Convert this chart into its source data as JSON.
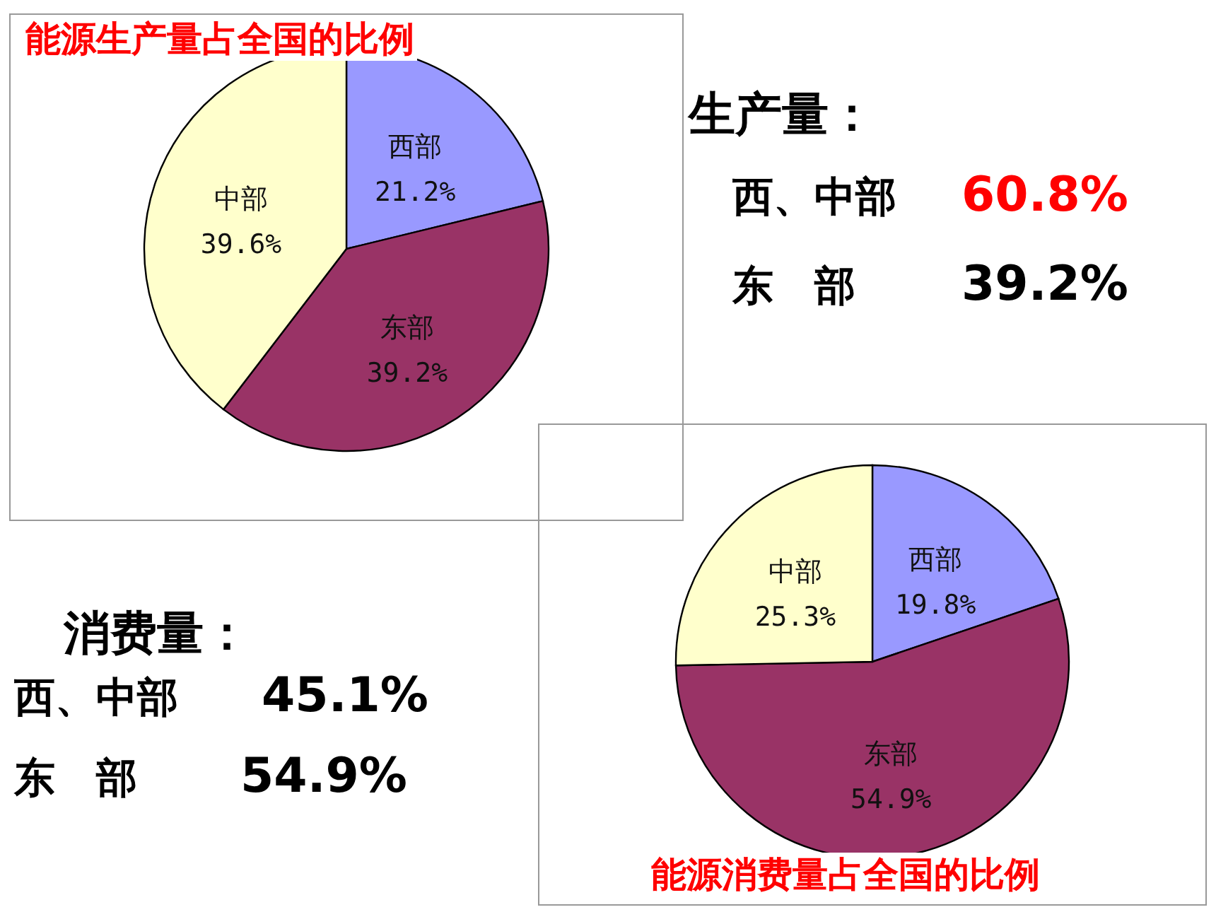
{
  "chart_data": [
    {
      "type": "pie",
      "title": "能源生产量占全国的比例",
      "categories": [
        "西部",
        "东部",
        "中部"
      ],
      "values": [
        21.2,
        39.2,
        39.6
      ],
      "colors": [
        "#9999ff",
        "#993366",
        "#ffffcc"
      ],
      "value_labels": [
        "21.2%",
        "39.2%",
        "39.6%"
      ]
    },
    {
      "type": "other",
      "title": "生产量：",
      "annotations": [
        "西、中部",
        "60.8%",
        "东　部",
        "39.2%"
      ]
    },
    {
      "type": "other",
      "title": "消费量：",
      "annotations": [
        "西、中部",
        "45.1%",
        "东　部",
        "54.9%"
      ]
    },
    {
      "type": "pie",
      "title": "能源消费量占全国的比例",
      "categories": [
        "西部",
        "东部",
        "中部"
      ],
      "values": [
        19.8,
        54.9,
        25.3
      ],
      "colors": [
        "#9999ff",
        "#993366",
        "#ffffcc"
      ],
      "value_labels": [
        "19.8%",
        "54.9%",
        "25.3%"
      ]
    }
  ]
}
